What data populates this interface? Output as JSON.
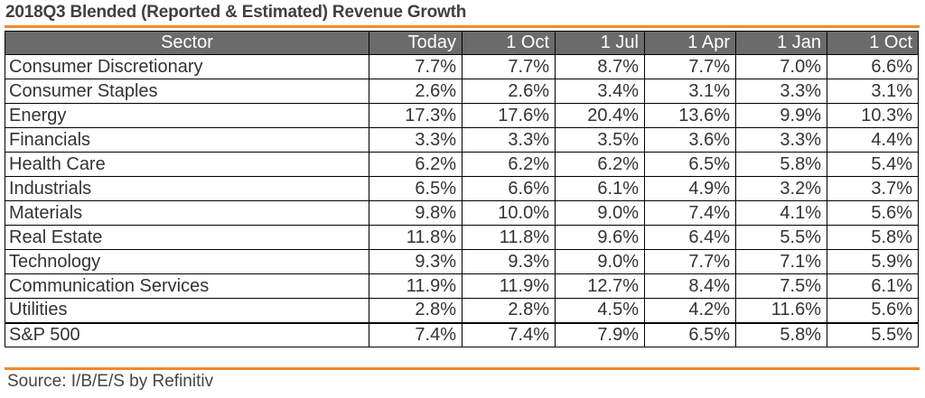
{
  "title": "2018Q3 Blended (Reported & Estimated) Revenue Growth",
  "source": "Source: I/B/E/S by Refinitiv",
  "colors": {
    "accent_rule": "#f0892b",
    "header_bg": "#6b6b6b",
    "header_text": "#ffffff"
  },
  "chart_data": {
    "type": "table",
    "title": "2018Q3 Blended (Reported & Estimated) Revenue Growth",
    "columns": [
      "Sector",
      "Today",
      "1 Oct",
      "1 Jul",
      "1 Apr",
      "1 Jan",
      "1 Oct"
    ],
    "rows": [
      {
        "label": "Consumer Discretionary",
        "values": [
          "7.7%",
          "7.7%",
          "8.7%",
          "7.7%",
          "7.0%",
          "6.6%"
        ]
      },
      {
        "label": "Consumer Staples",
        "values": [
          "2.6%",
          "2.6%",
          "3.4%",
          "3.1%",
          "3.3%",
          "3.1%"
        ]
      },
      {
        "label": "Energy",
        "values": [
          "17.3%",
          "17.6%",
          "20.4%",
          "13.6%",
          "9.9%",
          "10.3%"
        ]
      },
      {
        "label": "Financials",
        "values": [
          "3.3%",
          "3.3%",
          "3.5%",
          "3.6%",
          "3.3%",
          "4.4%"
        ]
      },
      {
        "label": "Health Care",
        "values": [
          "6.2%",
          "6.2%",
          "6.2%",
          "6.5%",
          "5.8%",
          "5.4%"
        ]
      },
      {
        "label": "Industrials",
        "values": [
          "6.5%",
          "6.6%",
          "6.1%",
          "4.9%",
          "3.2%",
          "3.7%"
        ]
      },
      {
        "label": "Materials",
        "values": [
          "9.8%",
          "10.0%",
          "9.0%",
          "7.4%",
          "4.1%",
          "5.6%"
        ]
      },
      {
        "label": "Real Estate",
        "values": [
          "11.8%",
          "11.8%",
          "9.6%",
          "6.4%",
          "5.5%",
          "5.8%"
        ]
      },
      {
        "label": "Technology",
        "values": [
          "9.3%",
          "9.3%",
          "9.0%",
          "7.7%",
          "7.1%",
          "5.9%"
        ]
      },
      {
        "label": "Communication Services",
        "values": [
          "11.9%",
          "11.9%",
          "12.7%",
          "8.4%",
          "7.5%",
          "6.1%"
        ]
      },
      {
        "label": "Utilities",
        "values": [
          "2.8%",
          "2.8%",
          "4.5%",
          "4.2%",
          "11.6%",
          "5.6%"
        ]
      },
      {
        "label": "S&P 500",
        "values": [
          "7.4%",
          "7.4%",
          "7.9%",
          "6.5%",
          "5.8%",
          "5.5%"
        ]
      }
    ]
  }
}
